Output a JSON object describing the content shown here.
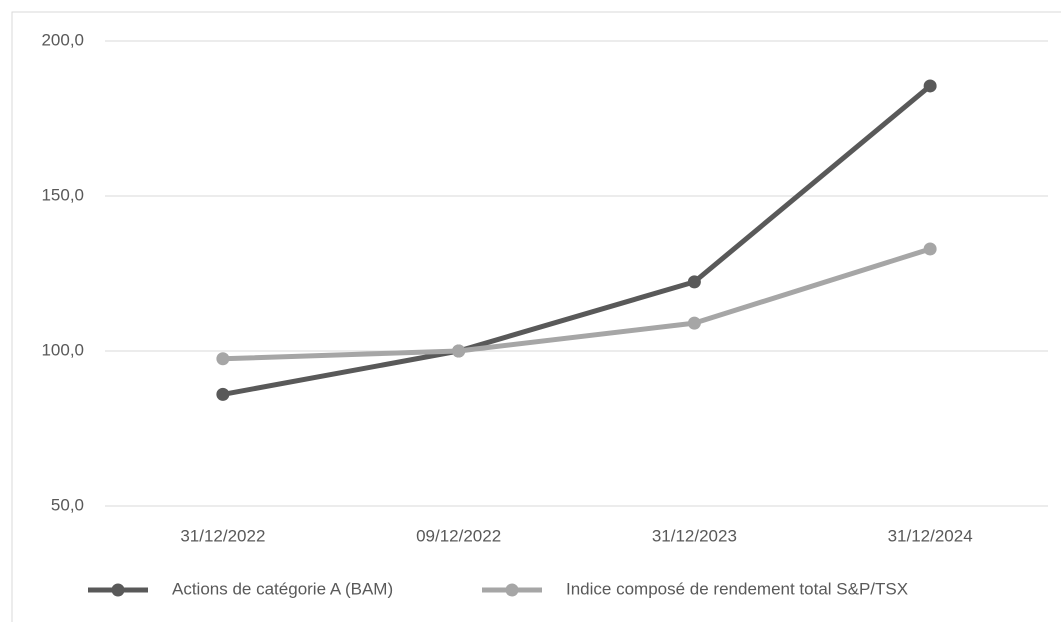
{
  "chart_data": {
    "type": "line",
    "categories": [
      "31/12/2022",
      "09/12/2022",
      "31/12/2023",
      "31/12/2024"
    ],
    "series": [
      {
        "name": "Actions de catégorie A (BAM)",
        "color": "#595959",
        "values": [
          86,
          100,
          122.3,
          185.5
        ]
      },
      {
        "name": "Indice composé de rendement total S&P/TSX",
        "color": "#a6a6a6",
        "values": [
          97.5,
          100,
          109,
          132.9
        ]
      }
    ],
    "ylim": [
      50,
      200
    ],
    "yticks": [
      {
        "value": 50,
        "label": "50,0"
      },
      {
        "value": 100,
        "label": "100,0"
      },
      {
        "value": 150,
        "label": "150,0"
      },
      {
        "value": 200,
        "label": "200,0"
      }
    ],
    "grid": true,
    "legend": "bottom"
  }
}
